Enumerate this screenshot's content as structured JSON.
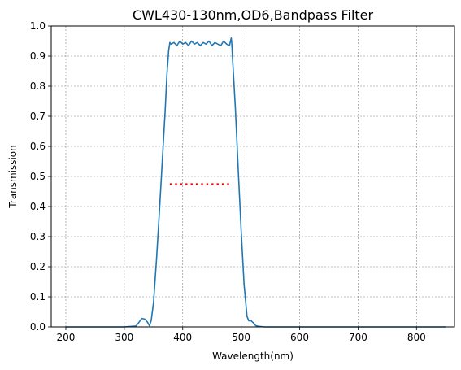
{
  "chart_data": {
    "type": "line",
    "title": "CWL430-130nm,OD6,Bandpass Filter",
    "xlabel": "Wavelength(nm)",
    "ylabel": "Transmission",
    "xlim": [
      175,
      865
    ],
    "ylim": [
      0,
      1.0
    ],
    "xticks": [
      200,
      300,
      400,
      500,
      600,
      700,
      800
    ],
    "yticks": [
      0.0,
      0.1,
      0.2,
      0.3,
      0.4,
      0.5,
      0.6,
      0.7,
      0.8,
      0.9,
      1.0
    ],
    "grid": true,
    "series": [
      {
        "color": "#1f77b4",
        "style": "solid",
        "x": [
          200,
          300,
          320,
          325,
          330,
          335,
          340,
          343,
          346,
          350,
          355,
          360,
          365,
          370,
          373,
          376,
          378,
          380,
          385,
          390,
          395,
          400,
          405,
          410,
          415,
          420,
          425,
          430,
          435,
          440,
          445,
          450,
          455,
          460,
          465,
          470,
          475,
          480,
          483,
          484,
          485,
          490,
          495,
          500,
          505,
          510,
          513,
          516,
          520,
          525,
          530,
          540,
          600,
          700,
          850
        ],
        "y": [
          0.0,
          0.0,
          0.003,
          0.015,
          0.028,
          0.026,
          0.015,
          0.004,
          0.02,
          0.08,
          0.22,
          0.38,
          0.55,
          0.72,
          0.84,
          0.92,
          0.945,
          0.94,
          0.945,
          0.935,
          0.95,
          0.94,
          0.945,
          0.935,
          0.95,
          0.94,
          0.945,
          0.935,
          0.945,
          0.94,
          0.95,
          0.935,
          0.945,
          0.94,
          0.935,
          0.95,
          0.94,
          0.935,
          0.96,
          0.94,
          0.9,
          0.73,
          0.52,
          0.32,
          0.14,
          0.035,
          0.02,
          0.022,
          0.015,
          0.004,
          0.002,
          0.0,
          0.0,
          0.0,
          0.0
        ]
      },
      {
        "color": "#ff0000",
        "style": "dotted",
        "x": [
          378,
          480
        ],
        "y": [
          0.474,
          0.474
        ]
      }
    ]
  }
}
